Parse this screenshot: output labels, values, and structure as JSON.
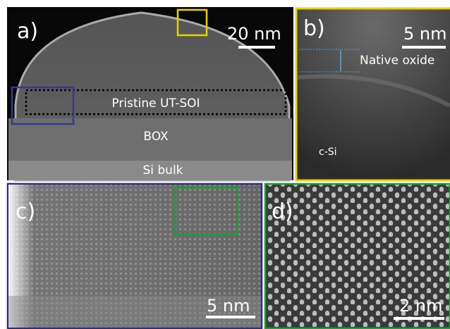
{
  "panels": [
    {
      "label": "a)",
      "scale_bar": "20 nm",
      "annotations": [
        "Pristine UT-SOI",
        "BOX",
        "Si bulk"
      ]
    },
    {
      "label": "b)",
      "scale_bar": "5 nm",
      "annotations": [
        "Native oxide",
        "c-Si"
      ]
    },
    {
      "label": "c)",
      "scale_bar": "5 nm"
    },
    {
      "label": "d)",
      "scale_bar": "2 nm"
    }
  ]
}
